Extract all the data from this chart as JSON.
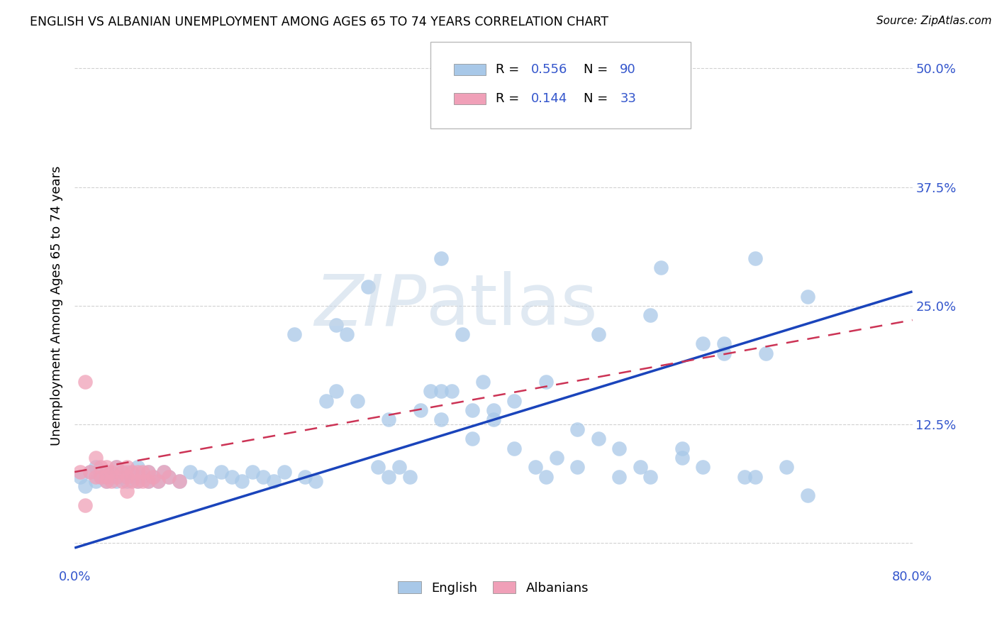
{
  "title": "ENGLISH VS ALBANIAN UNEMPLOYMENT AMONG AGES 65 TO 74 YEARS CORRELATION CHART",
  "source": "Source: ZipAtlas.com",
  "ylabel": "Unemployment Among Ages 65 to 74 years",
  "xlim": [
    0.0,
    0.8
  ],
  "ylim": [
    -0.025,
    0.525
  ],
  "english_R": 0.556,
  "english_N": 90,
  "albanian_R": 0.144,
  "albanian_N": 33,
  "english_color": "#a8c8e8",
  "albanian_color": "#f0a0b8",
  "english_line_color": "#1a44bb",
  "albanian_line_color": "#cc3355",
  "background_color": "#ffffff",
  "english_x": [
    0.005,
    0.01,
    0.015,
    0.02,
    0.02,
    0.025,
    0.03,
    0.03,
    0.035,
    0.04,
    0.04,
    0.045,
    0.05,
    0.05,
    0.055,
    0.06,
    0.06,
    0.065,
    0.07,
    0.07,
    0.075,
    0.08,
    0.085,
    0.09,
    0.1,
    0.11,
    0.12,
    0.13,
    0.14,
    0.15,
    0.16,
    0.17,
    0.18,
    0.19,
    0.2,
    0.21,
    0.22,
    0.23,
    0.24,
    0.25,
    0.26,
    0.27,
    0.28,
    0.29,
    0.3,
    0.31,
    0.32,
    0.33,
    0.34,
    0.35,
    0.36,
    0.37,
    0.38,
    0.39,
    0.4,
    0.42,
    0.44,
    0.46,
    0.48,
    0.5,
    0.52,
    0.54,
    0.56,
    0.58,
    0.6,
    0.62,
    0.64,
    0.66,
    0.68,
    0.7,
    0.35,
    0.38,
    0.42,
    0.45,
    0.48,
    0.52,
    0.55,
    0.58,
    0.62,
    0.65,
    0.25,
    0.3,
    0.35,
    0.4,
    0.45,
    0.5,
    0.55,
    0.6,
    0.65,
    0.7
  ],
  "english_y": [
    0.07,
    0.06,
    0.075,
    0.065,
    0.08,
    0.07,
    0.065,
    0.075,
    0.07,
    0.065,
    0.08,
    0.07,
    0.065,
    0.075,
    0.07,
    0.065,
    0.08,
    0.07,
    0.065,
    0.075,
    0.07,
    0.065,
    0.075,
    0.07,
    0.065,
    0.075,
    0.07,
    0.065,
    0.075,
    0.07,
    0.065,
    0.075,
    0.07,
    0.065,
    0.075,
    0.22,
    0.07,
    0.065,
    0.15,
    0.16,
    0.22,
    0.15,
    0.27,
    0.08,
    0.07,
    0.08,
    0.07,
    0.14,
    0.16,
    0.3,
    0.16,
    0.22,
    0.14,
    0.17,
    0.13,
    0.15,
    0.08,
    0.09,
    0.12,
    0.11,
    0.07,
    0.08,
    0.29,
    0.1,
    0.08,
    0.21,
    0.07,
    0.2,
    0.08,
    0.05,
    0.13,
    0.11,
    0.1,
    0.07,
    0.08,
    0.1,
    0.07,
    0.09,
    0.2,
    0.07,
    0.23,
    0.13,
    0.16,
    0.14,
    0.17,
    0.22,
    0.24,
    0.21,
    0.3,
    0.26
  ],
  "albanian_x": [
    0.005,
    0.01,
    0.015,
    0.02,
    0.02,
    0.025,
    0.025,
    0.03,
    0.03,
    0.035,
    0.035,
    0.04,
    0.04,
    0.045,
    0.045,
    0.05,
    0.05,
    0.055,
    0.055,
    0.06,
    0.06,
    0.065,
    0.065,
    0.07,
    0.07,
    0.075,
    0.08,
    0.085,
    0.09,
    0.1,
    0.01,
    0.03,
    0.05
  ],
  "albanian_y": [
    0.075,
    0.17,
    0.075,
    0.09,
    0.07,
    0.08,
    0.07,
    0.08,
    0.07,
    0.075,
    0.065,
    0.08,
    0.07,
    0.075,
    0.065,
    0.08,
    0.07,
    0.075,
    0.065,
    0.075,
    0.065,
    0.075,
    0.065,
    0.075,
    0.065,
    0.07,
    0.065,
    0.075,
    0.07,
    0.065,
    0.04,
    0.065,
    0.055
  ],
  "eng_line_x0": 0.0,
  "eng_line_y0": -0.005,
  "eng_line_x1": 0.8,
  "eng_line_y1": 0.265,
  "alb_line_x0": 0.0,
  "alb_line_y0": 0.075,
  "alb_line_x1": 0.8,
  "alb_line_y1": 0.235
}
